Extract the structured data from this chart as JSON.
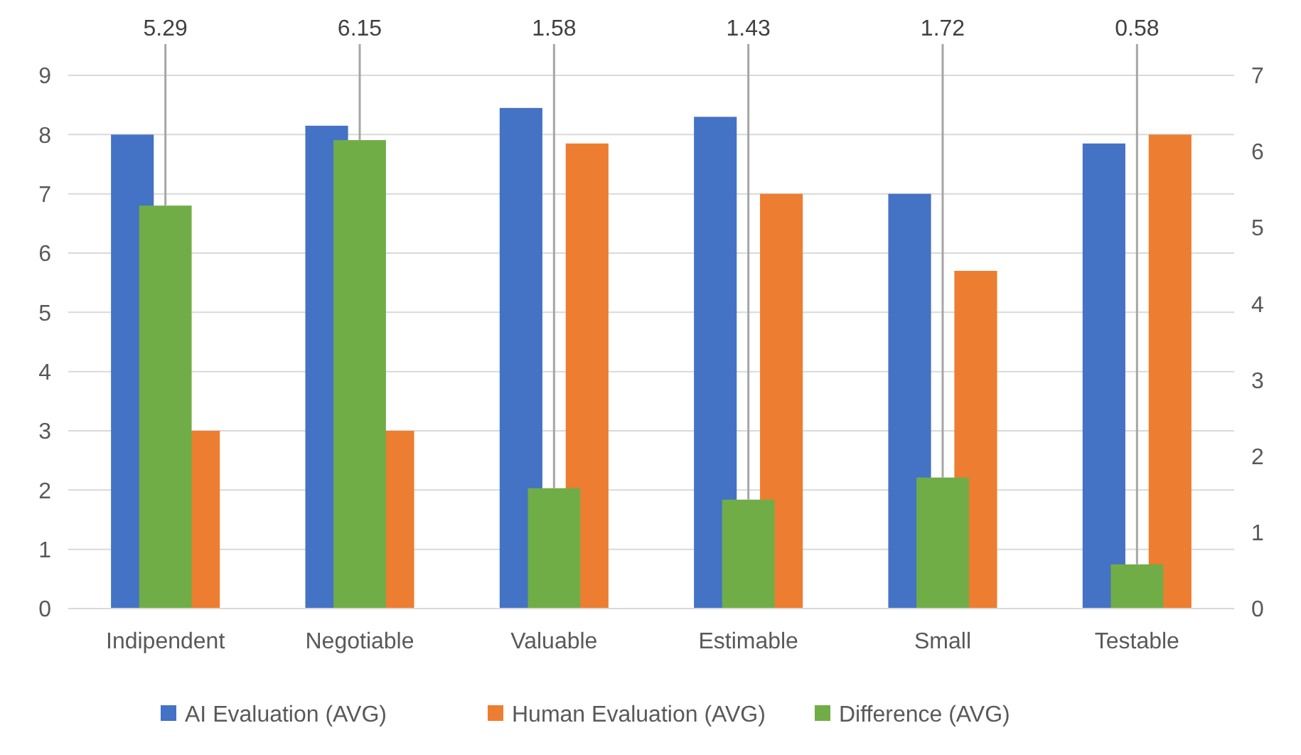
{
  "chart_data": {
    "type": "bar",
    "categories": [
      "Indipendent",
      "Negotiable",
      "Valuable",
      "Estimable",
      "Small",
      "Testable"
    ],
    "series": [
      {
        "name": "AI Evaluation (AVG)",
        "color": "#4472c4",
        "values": [
          8,
          8.15,
          8.45,
          8.3,
          7,
          7.85
        ]
      },
      {
        "name": "Human Evaluation (AVG)",
        "color": "#ed7d31",
        "values": [
          3,
          3,
          7.85,
          7,
          5.7,
          8
        ]
      },
      {
        "name": "Difference (AVG)",
        "color": "#70ad47",
        "axis": "y2",
        "values": [
          5.29,
          6.15,
          1.58,
          1.43,
          1.72,
          0.58
        ],
        "value_labels": [
          "5.29",
          "6.15",
          "1.58",
          "1.43",
          "1.72",
          "0.58"
        ]
      }
    ],
    "ylim": [
      0,
      9
    ],
    "yticks": [
      0,
      1,
      2,
      3,
      4,
      5,
      6,
      7,
      8,
      9
    ],
    "y2lim": [
      0,
      7
    ],
    "y2ticks": [
      0,
      1,
      2,
      3,
      4,
      5,
      6,
      7
    ],
    "grid": "y",
    "legend": "bottom"
  }
}
